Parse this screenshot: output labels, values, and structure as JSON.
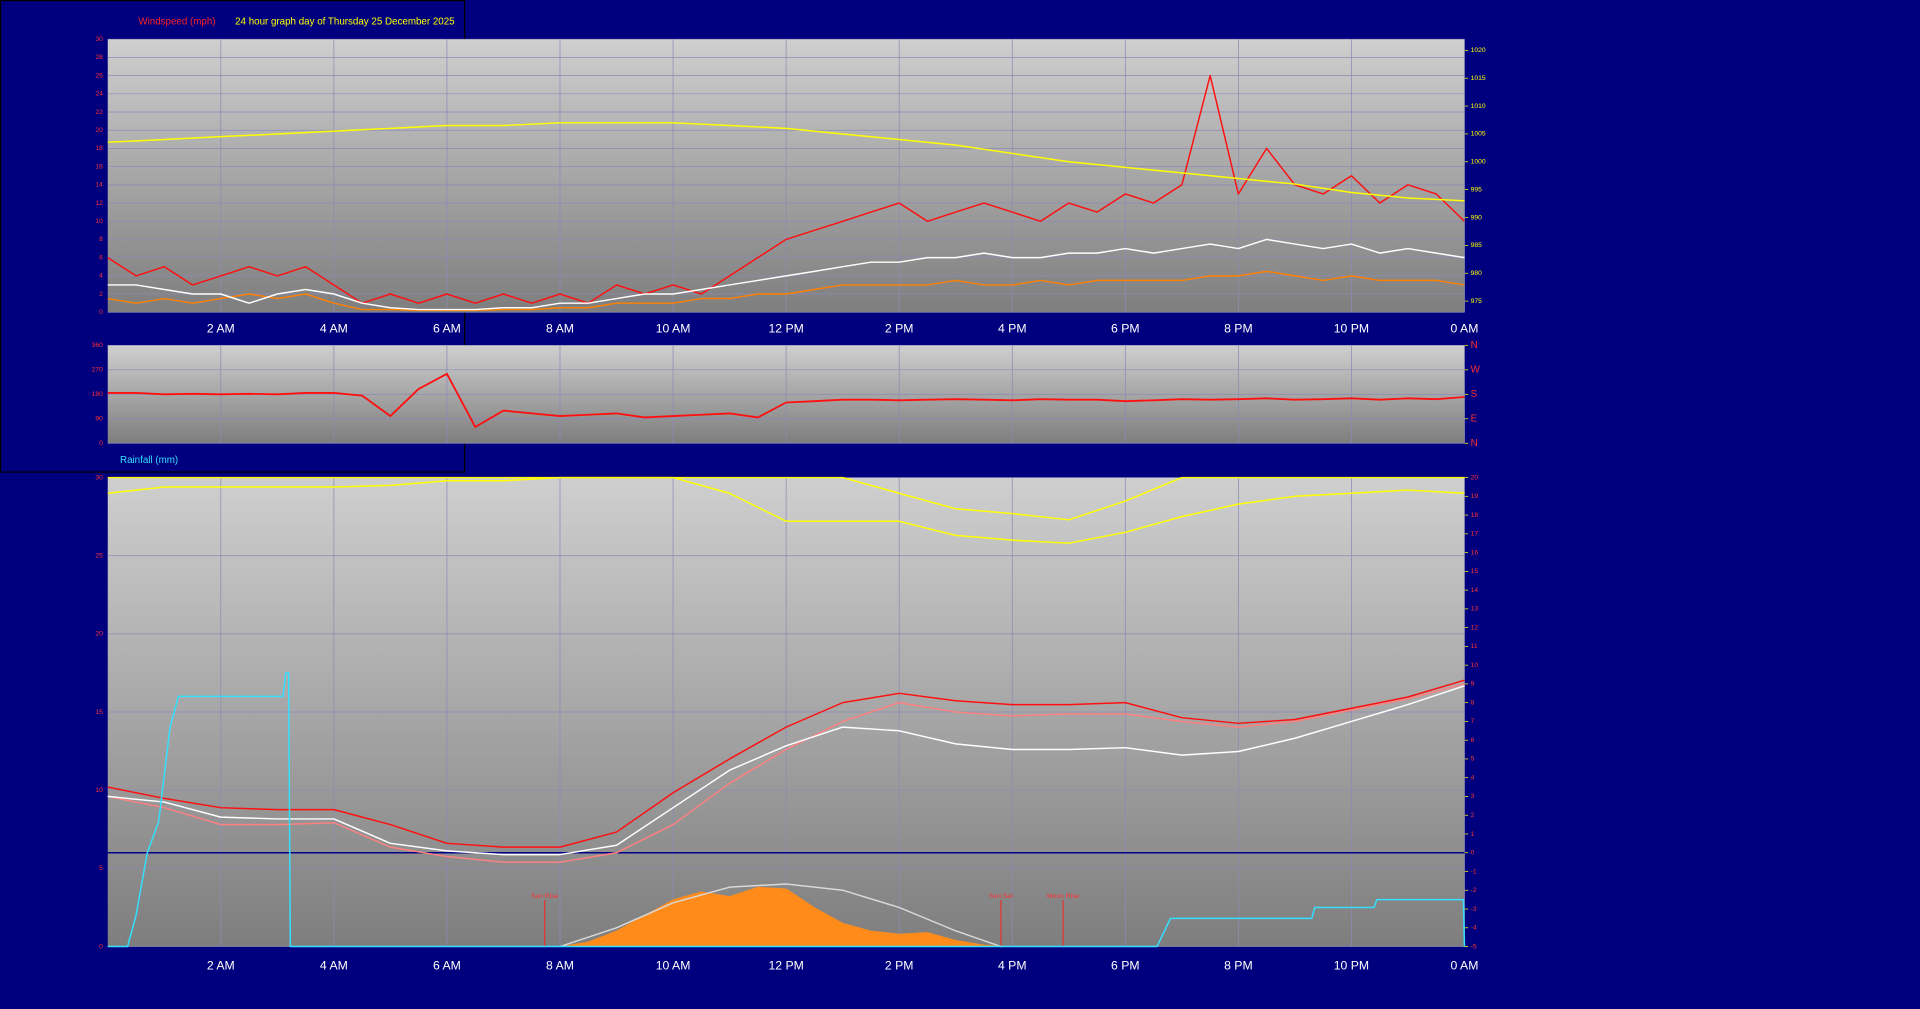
{
  "chart_data": [
    {
      "type": "line",
      "title": "Windspeed (mph)",
      "subtitle": "24 hour graph day of Thursday 25 December 2025",
      "x": [
        0,
        0.5,
        1,
        1.5,
        2,
        2.5,
        3,
        3.5,
        4,
        4.5,
        5,
        5.5,
        6,
        6.5,
        7,
        7.5,
        8,
        8.5,
        9,
        9.5,
        10,
        10.5,
        11,
        11.5,
        12,
        12.5,
        13,
        13.5,
        14,
        14.5,
        15,
        15.5,
        16,
        16.5,
        17,
        17.5,
        18,
        18.5,
        19,
        19.5,
        20,
        20.5,
        21,
        21.5,
        22,
        22.5,
        23,
        23.5,
        24
      ],
      "xlim": [
        0,
        24
      ],
      "xticks": [
        {
          "value": 2,
          "label": "2 AM"
        },
        {
          "value": 4,
          "label": "4 AM"
        },
        {
          "value": 6,
          "label": "6 AM"
        },
        {
          "value": 8,
          "label": "8 AM"
        },
        {
          "value": 10,
          "label": "10 AM"
        },
        {
          "value": 12,
          "label": "12 PM"
        },
        {
          "value": 14,
          "label": "2 PM"
        },
        {
          "value": 16,
          "label": "4 PM"
        },
        {
          "value": 18,
          "label": "6 PM"
        },
        {
          "value": 20,
          "label": "8 PM"
        },
        {
          "value": 22,
          "label": "10 PM"
        },
        {
          "value": 24,
          "label": "0 AM"
        }
      ],
      "ylim": [
        0,
        30
      ],
      "yticks": [
        0,
        2,
        4,
        6,
        8,
        10,
        12,
        14,
        16,
        18,
        20,
        22,
        24,
        26,
        28,
        30
      ],
      "y2lim": [
        973,
        1022
      ],
      "y2ticks": [
        975,
        980,
        985,
        990,
        995,
        1000,
        1005,
        1010,
        1015,
        1020
      ],
      "grid": true,
      "series": [
        {
          "color": "#ff8000",
          "values": [
            1.5,
            1,
            1.5,
            1,
            1.5,
            2,
            1.5,
            2,
            1,
            0.3,
            0.3,
            0.2,
            0.2,
            0.2,
            0.3,
            0.3,
            0.5,
            0.5,
            1,
            1,
            1,
            1.5,
            1.5,
            2,
            2,
            2.5,
            3,
            3,
            3,
            3,
            3.5,
            3,
            3,
            3.5,
            3,
            3.5,
            3.5,
            3.5,
            3.5,
            4,
            4,
            4.5,
            4,
            3.5,
            4,
            3.5,
            3.5,
            3.5,
            3
          ]
        },
        {
          "color": "#ff1010",
          "values": [
            6,
            4,
            5,
            3,
            4,
            5,
            4,
            5,
            3,
            1,
            2,
            1,
            2,
            1,
            2,
            1,
            2,
            1,
            3,
            2,
            3,
            2,
            4,
            6,
            8,
            9,
            10,
            11,
            12,
            10,
            11,
            12,
            11,
            10,
            12,
            11,
            13,
            12,
            14,
            26,
            13,
            18,
            14,
            13,
            15,
            12,
            14,
            13,
            10
          ]
        },
        {
          "color": "#ffffff",
          "values": [
            3,
            3,
            2.5,
            2,
            2,
            1,
            2,
            2.5,
            2,
            1,
            0.5,
            0.3,
            0.3,
            0.3,
            0.5,
            0.5,
            1,
            1,
            1.5,
            2,
            2,
            2.5,
            3,
            3.5,
            4,
            4.5,
            5,
            5.5,
            5.5,
            6,
            6,
            6.5,
            6,
            6,
            6.5,
            6.5,
            7,
            6.5,
            7,
            7.5,
            7,
            8,
            7.5,
            7,
            7.5,
            6.5,
            7,
            6.5,
            6
          ]
        },
        {
          "color": "#ffff00",
          "axis": "y2",
          "x": [
            0,
            1,
            2,
            3,
            4,
            5,
            6,
            7,
            8,
            9,
            10,
            11,
            12,
            13,
            14,
            15,
            16,
            17,
            18,
            19,
            20,
            21,
            22,
            23,
            24
          ],
          "values": [
            1003.5,
            1004,
            1004.5,
            1005,
            1005.5,
            1006,
            1006.5,
            1006.5,
            1007,
            1007,
            1007,
            1006.5,
            1006,
            1005,
            1004,
            1003,
            1001.5,
            1000,
            999,
            998,
            997,
            996,
            994.5,
            993.5,
            993
          ]
        }
      ]
    },
    {
      "type": "line",
      "x": [
        0,
        0.5,
        1,
        1.5,
        2,
        2.5,
        3,
        3.5,
        4,
        4.5,
        5,
        5.5,
        6,
        6.5,
        7,
        7.5,
        8,
        8.5,
        9,
        9.5,
        10,
        10.5,
        11,
        11.5,
        12,
        12.5,
        13,
        13.5,
        14,
        14.5,
        15,
        15.5,
        16,
        16.5,
        17,
        17.5,
        18,
        18.5,
        19,
        19.5,
        20,
        20.5,
        21,
        21.5,
        22,
        22.5,
        23,
        23.5,
        24
      ],
      "xlim": [
        0,
        24
      ],
      "xticks": [
        2,
        4,
        6,
        8,
        10,
        12,
        14,
        16,
        18,
        20,
        22,
        24
      ],
      "ylim": [
        0,
        360
      ],
      "yticks": [
        0,
        90,
        180,
        270,
        360
      ],
      "y2lim": [
        0,
        360
      ],
      "y2ticks": [
        {
          "value": 360,
          "label": "N"
        },
        {
          "value": 270,
          "label": "W"
        },
        {
          "value": 180,
          "label": "S"
        },
        {
          "value": 90,
          "label": "E"
        },
        {
          "value": 0,
          "label": "N"
        }
      ],
      "grid": true,
      "series": [
        {
          "color": "#ff1010",
          "values": [
            185,
            185,
            180,
            182,
            180,
            182,
            180,
            185,
            185,
            175,
            100,
            200,
            255,
            60,
            120,
            110,
            100,
            105,
            110,
            95,
            100,
            105,
            110,
            95,
            150,
            155,
            160,
            160,
            158,
            160,
            162,
            160,
            158,
            162,
            160,
            160,
            155,
            158,
            162,
            160,
            162,
            165,
            160,
            162,
            165,
            160,
            165,
            162,
            170
          ]
        }
      ]
    },
    {
      "type": "line",
      "title": "Rainfall (mm)",
      "x": [
        0,
        1,
        2,
        3,
        4,
        5,
        6,
        7,
        8,
        9,
        10,
        11,
        12,
        13,
        14,
        15,
        16,
        17,
        18,
        19,
        20,
        21,
        22,
        23,
        24
      ],
      "xlim": [
        0,
        24
      ],
      "xticks": [
        {
          "value": 2,
          "label": "2 AM"
        },
        {
          "value": 4,
          "label": "4 AM"
        },
        {
          "value": 6,
          "label": "6 AM"
        },
        {
          "value": 8,
          "label": "8 AM"
        },
        {
          "value": 10,
          "label": "10 AM"
        },
        {
          "value": 12,
          "label": "12 PM"
        },
        {
          "value": 14,
          "label": "2 PM"
        },
        {
          "value": 16,
          "label": "4 PM"
        },
        {
          "value": 18,
          "label": "6 PM"
        },
        {
          "value": 20,
          "label": "8 PM"
        },
        {
          "value": 22,
          "label": "10 PM"
        },
        {
          "value": 24,
          "label": "0 AM"
        }
      ],
      "ylim": [
        0,
        30
      ],
      "yticks": [
        0,
        5,
        10,
        15,
        20,
        25,
        30
      ],
      "y2lim": [
        -5,
        20
      ],
      "y2ticks": [
        -5,
        -4,
        -3,
        -2,
        -1,
        0,
        1,
        2,
        3,
        4,
        5,
        6,
        7,
        8,
        9,
        10,
        11,
        12,
        13,
        14,
        15,
        16,
        17,
        18,
        19,
        20
      ],
      "grid": true,
      "annotations": [
        {
          "text": "Sun Rise",
          "x": 7.73
        },
        {
          "text": "Sun Set",
          "x": 15.8
        },
        {
          "text": "Moon Rise",
          "x": 16.9
        }
      ],
      "series": [
        {
          "color": "#ff8c1a",
          "style": "area",
          "x": [
            8,
            8.5,
            9,
            9.5,
            10,
            10.5,
            11,
            11.5,
            12,
            12.5,
            13,
            13.5,
            14,
            14.5,
            15,
            15.5,
            16
          ],
          "values": [
            0,
            0.3,
            1,
            2,
            3,
            3.5,
            3.2,
            3.8,
            3.7,
            2.5,
            1.5,
            1,
            0.8,
            0.9,
            0.4,
            0.1,
            0
          ]
        },
        {
          "color": "#d8d8d8",
          "x": [
            8,
            9,
            10,
            11,
            12,
            13,
            14,
            15,
            15.8
          ],
          "values": [
            0,
            1.2,
            2.8,
            3.8,
            4.0,
            3.6,
            2.5,
            1.0,
            0
          ]
        },
        {
          "color": "#ffff00",
          "values": [
            29,
            29.4,
            29.4,
            29.4,
            29.4,
            29.5,
            29.8,
            29.8,
            30,
            30,
            30,
            29,
            27.2,
            27.2,
            27.2,
            26.3,
            26.0,
            25.8,
            26.5,
            27.5,
            28.3,
            28.8,
            29.0,
            29.2,
            29.0
          ]
        },
        {
          "color": "#ffff00",
          "values": [
            30,
            30,
            30,
            30,
            30,
            30,
            30,
            30,
            30,
            30,
            30,
            30,
            30,
            30,
            29,
            28,
            27.7,
            27.3,
            28.5,
            30,
            30,
            30,
            30,
            30,
            30
          ]
        },
        {
          "color": "#ff8080",
          "axis": "y2",
          "values": [
            3.0,
            2.4,
            1.5,
            1.5,
            1.6,
            0.3,
            -0.2,
            -0.5,
            -0.5,
            0,
            1.5,
            3.7,
            5.5,
            7.0,
            8.0,
            7.5,
            7.3,
            7.4,
            7.4,
            7.0,
            6.7,
            7.0,
            7.6,
            8.2,
            9.0
          ]
        },
        {
          "color": "#ffffff",
          "axis": "y2",
          "values": [
            3.0,
            2.7,
            1.9,
            1.8,
            1.8,
            0.5,
            0.1,
            -0.1,
            -0.1,
            0.4,
            2.4,
            4.4,
            5.7,
            6.7,
            6.5,
            5.8,
            5.5,
            5.5,
            5.6,
            5.2,
            5.4,
            6.1,
            7.0,
            7.9,
            8.9
          ]
        },
        {
          "color": "#ff1010",
          "axis": "y2",
          "values": [
            3.5,
            2.9,
            2.4,
            2.3,
            2.3,
            1.5,
            0.5,
            0.3,
            0.3,
            1.1,
            3.2,
            5.0,
            6.7,
            8.0,
            8.5,
            8.1,
            7.9,
            7.9,
            8.0,
            7.2,
            6.9,
            7.1,
            7.7,
            8.3,
            9.2
          ]
        },
        {
          "color": "#33e0ff",
          "x": [
            0,
            0.35,
            0.5,
            0.7,
            0.9,
            1.1,
            1.25,
            3.1,
            3.15,
            3.2,
            3.23,
            18.56,
            18.8,
            21.3,
            21.35,
            22.4,
            22.45,
            23.98,
            24
          ],
          "values": [
            0,
            0,
            2,
            6,
            8,
            14,
            16,
            16,
            17.5,
            17.5,
            0,
            0,
            1.8,
            1.8,
            2.5,
            2.5,
            3,
            3,
            0
          ]
        }
      ]
    }
  ]
}
